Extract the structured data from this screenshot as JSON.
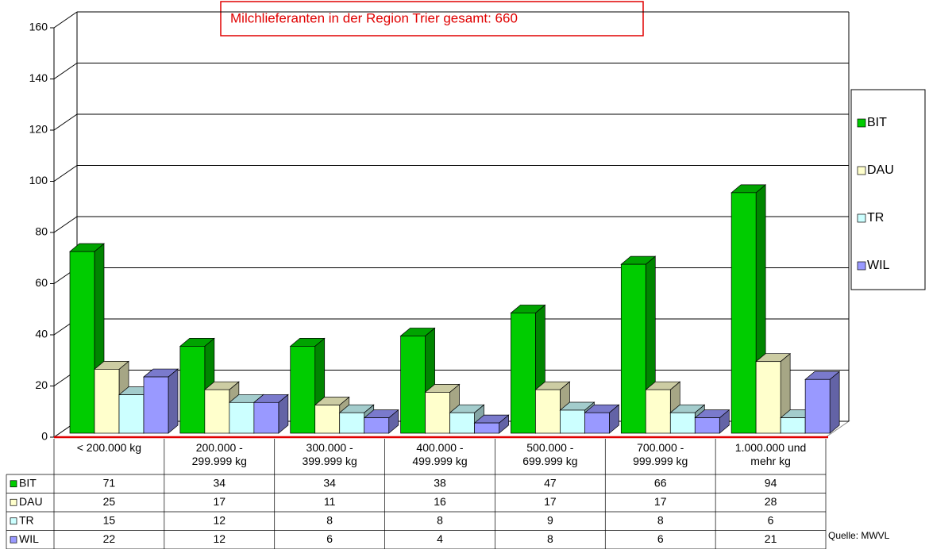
{
  "chart_data": {
    "type": "bar3d",
    "title": "Milchlieferanten in der Region Trier gesamt: 660",
    "categories": [
      "< 200.000 kg",
      "200.000 -\n299.999 kg",
      "300.000 -\n399.999 kg",
      "400.000 -\n499.999 kg",
      "500.000 -\n699.999 kg",
      "700.000 -\n999.999 kg",
      "1.000.000 und\nmehr kg"
    ],
    "series": [
      {
        "name": "BIT",
        "color": "#00cc00",
        "values": [
          71,
          34,
          34,
          38,
          47,
          66,
          94
        ]
      },
      {
        "name": "DAU",
        "color": "#ffffcc",
        "values": [
          25,
          17,
          11,
          16,
          17,
          17,
          28
        ]
      },
      {
        "name": "TR",
        "color": "#ccffff",
        "values": [
          15,
          12,
          8,
          8,
          9,
          8,
          6
        ]
      },
      {
        "name": "WIL",
        "color": "#9999ff",
        "values": [
          22,
          12,
          6,
          4,
          8,
          6,
          21
        ]
      }
    ],
    "ylim": [
      0,
      160
    ],
    "yticks": [
      0,
      20,
      40,
      60,
      80,
      100,
      120,
      140,
      160
    ],
    "grid": true,
    "legend": "right",
    "source": "Quelle: MWVL"
  }
}
